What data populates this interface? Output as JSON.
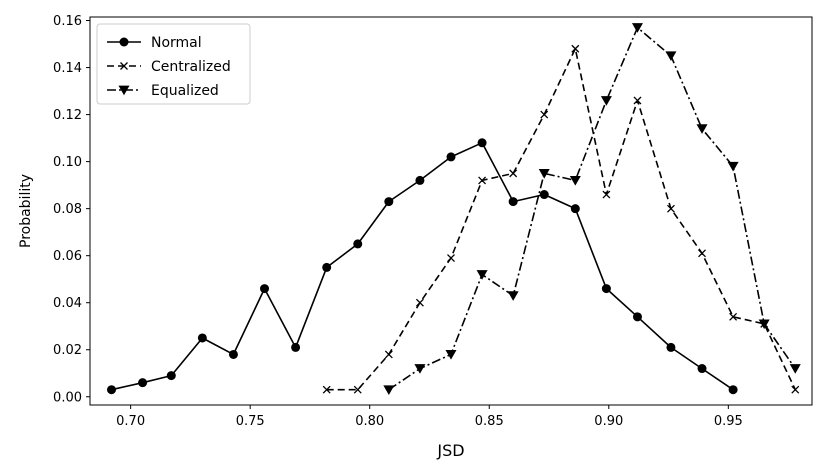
{
  "chart_data": {
    "type": "line",
    "title": "",
    "xlabel": "JSD",
    "ylabel": "Probability",
    "xlim": [
      0.683,
      0.985
    ],
    "ylim": [
      -0.0035,
      0.1615
    ],
    "xticks": [
      0.7,
      0.75,
      0.8,
      0.85,
      0.9,
      0.95
    ],
    "xtick_labels": [
      "0.70",
      "0.75",
      "0.80",
      "0.85",
      "0.90",
      "0.95"
    ],
    "yticks": [
      0.0,
      0.02,
      0.04,
      0.06,
      0.08,
      0.1,
      0.12,
      0.14,
      0.16
    ],
    "ytick_labels": [
      "0.00",
      "0.02",
      "0.04",
      "0.06",
      "0.08",
      "0.10",
      "0.12",
      "0.14",
      "0.16"
    ],
    "grid": false,
    "legend_position": "top-left",
    "series": [
      {
        "name": "Normal",
        "marker": "circle",
        "line_style": "solid",
        "color": "#000000",
        "x": [
          0.692,
          0.705,
          0.717,
          0.73,
          0.743,
          0.756,
          0.769,
          0.782,
          0.795,
          0.808,
          0.821,
          0.834,
          0.847,
          0.86,
          0.873,
          0.886,
          0.899,
          0.912,
          0.926,
          0.939,
          0.952
        ],
        "y": [
          0.003,
          0.006,
          0.009,
          0.025,
          0.018,
          0.046,
          0.021,
          0.055,
          0.065,
          0.083,
          0.092,
          0.102,
          0.108,
          0.083,
          0.086,
          0.08,
          0.046,
          0.034,
          0.021,
          0.012,
          0.003
        ]
      },
      {
        "name": "Centralized",
        "marker": "x",
        "line_style": "dashed",
        "color": "#000000",
        "x": [
          0.782,
          0.795,
          0.808,
          0.821,
          0.834,
          0.847,
          0.86,
          0.873,
          0.886,
          0.899,
          0.912,
          0.926,
          0.939,
          0.952,
          0.965,
          0.978
        ],
        "y": [
          0.003,
          0.003,
          0.018,
          0.04,
          0.059,
          0.092,
          0.095,
          0.12,
          0.148,
          0.086,
          0.126,
          0.08,
          0.061,
          0.034,
          0.031,
          0.003
        ]
      },
      {
        "name": "Equalized",
        "marker": "triangle-down",
        "line_style": "dashdot",
        "color": "#000000",
        "x": [
          0.808,
          0.821,
          0.834,
          0.847,
          0.86,
          0.873,
          0.886,
          0.899,
          0.912,
          0.926,
          0.939,
          0.952,
          0.965,
          0.978
        ],
        "y": [
          0.003,
          0.012,
          0.018,
          0.052,
          0.043,
          0.095,
          0.092,
          0.126,
          0.157,
          0.145,
          0.114,
          0.098,
          0.031,
          0.012
        ]
      }
    ]
  }
}
